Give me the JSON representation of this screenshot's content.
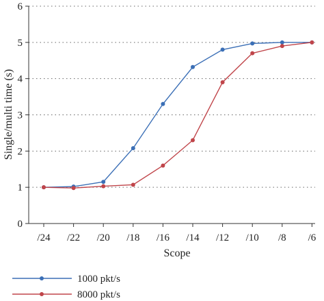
{
  "chart_data": {
    "type": "line",
    "categories": [
      "/24",
      "/22",
      "/20",
      "/18",
      "/16",
      "/14",
      "/12",
      "/10",
      "/8",
      "/6"
    ],
    "series": [
      {
        "name": "1000 pkt/s",
        "color": "#3b6fb6",
        "values": [
          1.0,
          1.02,
          1.15,
          2.08,
          3.3,
          4.32,
          4.8,
          4.97,
          5.0,
          5.0
        ]
      },
      {
        "name": "8000 pkt/s",
        "color": "#c0454a",
        "values": [
          1.0,
          0.98,
          1.03,
          1.07,
          1.6,
          2.3,
          3.9,
          4.7,
          4.9,
          5.0
        ]
      }
    ],
    "xlabel": "Scope",
    "ylabel": "Single/multi time (s)",
    "ylim": [
      0,
      6
    ],
    "yticks": [
      0,
      1,
      2,
      3,
      4,
      5,
      6
    ],
    "grid": "horizontal dotted",
    "legend_position": "bottom-left"
  }
}
